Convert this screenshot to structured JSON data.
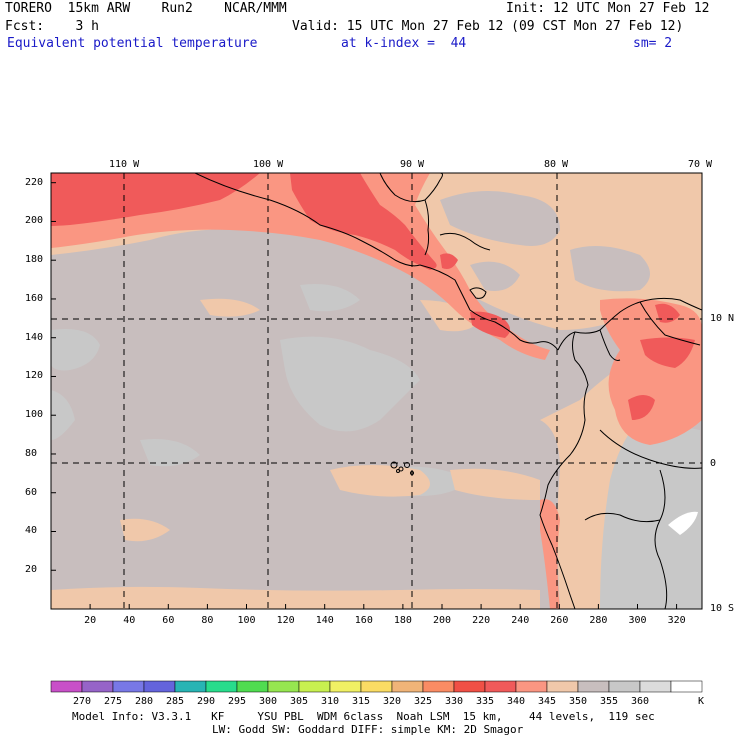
{
  "header": {
    "model": "TORERO  15km ARW    Run2    NCAR/MMM",
    "init": "Init: 12 UTC Mon 27 Feb 12",
    "fcst": "Fcst:    3 h",
    "valid": "Valid: 15 UTC Mon 27 Feb 12 (09 CST Mon 27 Feb 12)",
    "field": "Equivalent potential temperature",
    "level": "at k-index =  44",
    "smoothing": "sm= 2"
  },
  "map": {
    "top_lon_labels": [
      "110 W",
      "100 W",
      "90 W",
      "80 W",
      "70 W"
    ],
    "right_lat_labels": [
      "10 N",
      "0",
      "10 S"
    ],
    "y_ticks": [
      "220",
      "200",
      "180",
      "160",
      "140",
      "120",
      "100",
      "80",
      "60",
      "40",
      "20"
    ],
    "x_ticks": [
      "20",
      "40",
      "60",
      "80",
      "100",
      "120",
      "140",
      "160",
      "180",
      "200",
      "220",
      "240",
      "260",
      "280",
      "300",
      "320"
    ]
  },
  "colorbar": {
    "labels": [
      "270",
      "275",
      "280",
      "285",
      "290",
      "295",
      "300",
      "305",
      "310",
      "315",
      "320",
      "325",
      "330",
      "335",
      "340",
      "345",
      "350",
      "355",
      "360"
    ],
    "unit": "K",
    "colors": [
      "#c850c8",
      "#9664c8",
      "#7878e6",
      "#6464dc",
      "#28b4b4",
      "#28dc8c",
      "#50dc50",
      "#96e650",
      "#c8f050",
      "#f0f064",
      "#fadc64",
      "#f0b478",
      "#fa8c64",
      "#f05046",
      "#f05a5a",
      "#fa9682",
      "#f0c8aa",
      "#c8bebe",
      "#c8c8c8",
      "#dcdcdc",
      "#ffffff"
    ]
  },
  "footer": {
    "line1": "Model Info: V3.3.1   KF     YSU PBL  WDM 6class  Noah LSM  15 km,    44 levels,  119 sec",
    "line2": "LW: Godd SW: Goddard DIFF: simple KM: 2D Smagor"
  },
  "field_colors": {
    "base": "#c8bebe",
    "light_gray": "#c8c8c8",
    "tan": "#f0c8aa",
    "salmon": "#fa9682",
    "red": "#f05a5a",
    "white": "#ffffff"
  }
}
